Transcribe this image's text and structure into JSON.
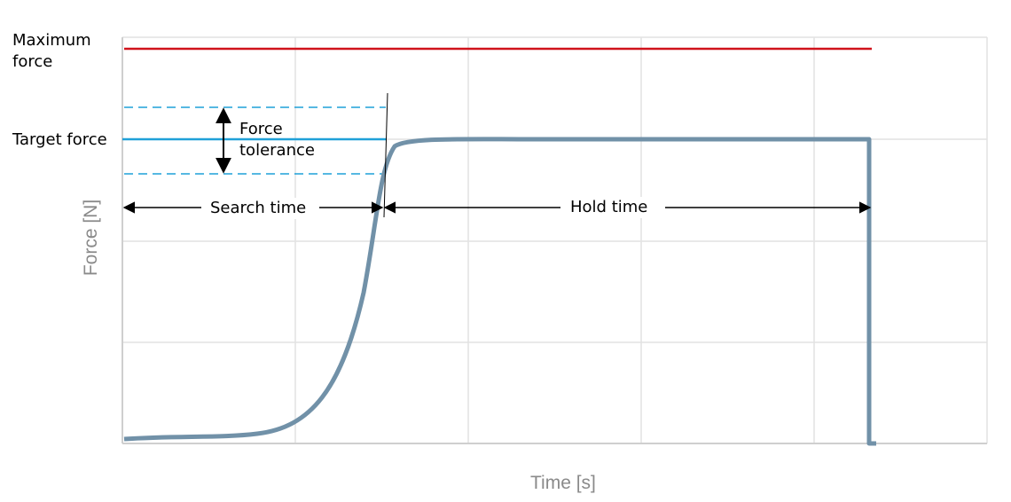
{
  "labels": {
    "maximum_force": "Maximum force",
    "target_force": "Target force",
    "force_tolerance": "Force tolerance",
    "search_time": "Search time",
    "hold_time": "Hold time"
  },
  "axes": {
    "y_label": "Force [N]",
    "x_label": "Time [s]"
  }
}
